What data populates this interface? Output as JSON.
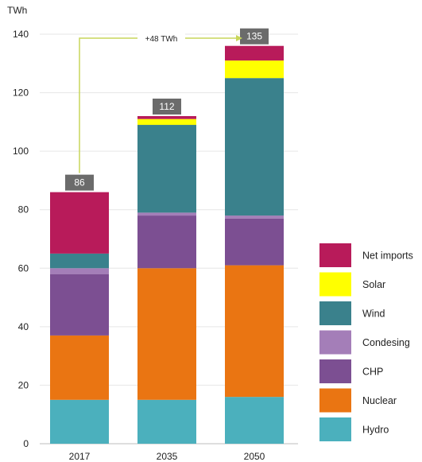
{
  "chart_data": {
    "type": "bar",
    "stacked": true,
    "categories": [
      "2017",
      "2035",
      "2050"
    ],
    "ylabel": "TWh",
    "ylim": [
      0,
      140
    ],
    "yticks": [
      0,
      20,
      40,
      60,
      80,
      100,
      120,
      140
    ],
    "grid": true,
    "legend_position": "right-bottom",
    "series": [
      {
        "name": "Hydro",
        "color": "#4bb0bd",
        "values": [
          15,
          15,
          16
        ]
      },
      {
        "name": "Nuclear",
        "color": "#ea7512",
        "values": [
          22,
          45,
          45
        ]
      },
      {
        "name": "CHP",
        "color": "#7c4f92",
        "values": [
          21,
          18,
          16
        ]
      },
      {
        "name": "Condesing",
        "color": "#a47eb8",
        "values": [
          2,
          1,
          1
        ]
      },
      {
        "name": "Wind",
        "color": "#3a818c",
        "values": [
          5,
          30,
          47
        ]
      },
      {
        "name": "Solar",
        "color": "#ffff00",
        "values": [
          0,
          2,
          6
        ]
      },
      {
        "name": "Net imports",
        "color": "#b81b5a",
        "values": [
          21,
          1,
          5
        ]
      }
    ],
    "totals": [
      "86",
      "112",
      "135"
    ],
    "total_label_color": "#6b6b6b",
    "annotation": {
      "text": "+48 TWh",
      "color": "#c8d65a",
      "from": "2017",
      "to": "2050"
    }
  }
}
